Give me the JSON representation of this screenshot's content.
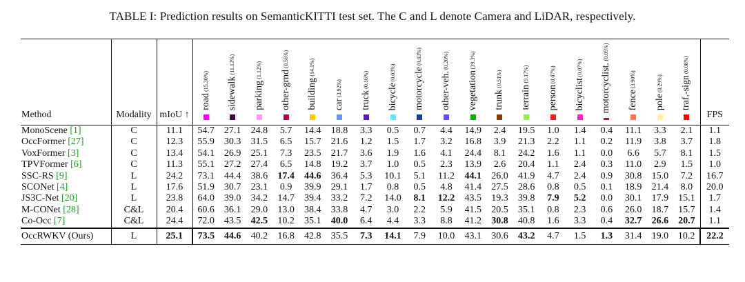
{
  "caption": "TABLE I: Prediction results on SemanticKITTI test set. The C and L denote Camera and LiDAR, respectively.",
  "headers": {
    "method": "Method",
    "modality": "Modality",
    "miou": "mIoU ↑",
    "fps": "FPS"
  },
  "classes": [
    {
      "name": "road",
      "pct": "(15.30%)",
      "color": "#ff00ff"
    },
    {
      "name": "sidewalk",
      "pct": "(11.13%)",
      "color": "#4b004b"
    },
    {
      "name": "parking",
      "pct": "(1.12%)",
      "color": "#ff96ff"
    },
    {
      "name": "other-grnd",
      "pct": "(0.56%)",
      "color": "#af0050"
    },
    {
      "name": "building",
      "pct": "(14.1%)",
      "color": "#ffc800"
    },
    {
      "name": "car",
      "pct": "(3.92%)",
      "color": "#6496f5"
    },
    {
      "name": "truck",
      "pct": "(0.16%)",
      "color": "#501eb4"
    },
    {
      "name": "bicycle",
      "pct": "(0.03%)",
      "color": "#64e6f5"
    },
    {
      "name": "motorcycle",
      "pct": "(0.03%)",
      "color": "#1e3c96"
    },
    {
      "name": "other-veh.",
      "pct": "(0.20%)",
      "color": "#6450fa"
    },
    {
      "name": "vegetation",
      "pct": "(39.3%)",
      "color": "#00af00"
    },
    {
      "name": "trunk",
      "pct": "(0.51%)",
      "color": "#873c00"
    },
    {
      "name": "terrain",
      "pct": "(9.17%)",
      "color": "#96f050"
    },
    {
      "name": "person",
      "pct": "(0.07%)",
      "color": "#ff1e1e"
    },
    {
      "name": "bicyclist",
      "pct": "(0.07%)",
      "color": "#ff28c8"
    },
    {
      "name": "motorcyclist.",
      "pct": "(0.05%)",
      "color": "#961e5a"
    },
    {
      "name": "fence",
      "pct": "(3.90%)",
      "color": "#ff7850"
    },
    {
      "name": "pole",
      "pct": "(0.29%)",
      "color": "#fff096"
    },
    {
      "name": "traf.-sign",
      "pct": "(0.08%)",
      "color": "#ff0000"
    }
  ],
  "rows": [
    {
      "method": "MonoScene",
      "ref": "[1]",
      "modality": "C",
      "miou": "11.1",
      "vals": [
        "54.7",
        "27.1",
        "24.8",
        "5.7",
        "14.4",
        "18.8",
        "3.3",
        "0.5",
        "0.7",
        "4.4",
        "14.9",
        "2.4",
        "19.5",
        "1.0",
        "1.4",
        "0.4",
        "11.1",
        "3.3",
        "2.1"
      ],
      "fps": "1.1"
    },
    {
      "method": "OccFormer",
      "ref": "[27]",
      "modality": "C",
      "miou": "12.3",
      "vals": [
        "55.9",
        "30.3",
        "31.5",
        "6.5",
        "15.7",
        "21.6",
        "1.2",
        "1.5",
        "1.7",
        "3.2",
        "16.8",
        "3.9",
        "21.3",
        "2.2",
        "1.1",
        "0.2",
        "11.9",
        "3.8",
        "3.7"
      ],
      "fps": "1.8"
    },
    {
      "method": "VoxFormer",
      "ref": "[3]",
      "modality": "C",
      "miou": "13.4",
      "vals": [
        "54.1",
        "26.9",
        "25.1",
        "7.3",
        "23.5",
        "21.7",
        "3.6",
        "1.9",
        "1.6",
        "4.1",
        "24.4",
        "8.1",
        "24.2",
        "1.6",
        "1.1",
        "0.0",
        "6.6",
        "5.7",
        "8.1"
      ],
      "fps": "1.5"
    },
    {
      "method": "TPVFormer",
      "ref": "[6]",
      "modality": "C",
      "miou": "11.3",
      "vals": [
        "55.1",
        "27.2",
        "27.4",
        "6.5",
        "14.8",
        "19.2",
        "3.7",
        "1.0",
        "0.5",
        "2.3",
        "13.9",
        "2.6",
        "20.4",
        "1.1",
        "2.4",
        "0.3",
        "11.0",
        "2.9",
        "1.5"
      ],
      "fps": "1.0"
    },
    {
      "method": "SSC-RS",
      "ref": "[9]",
      "modality": "L",
      "miou": "24.2",
      "vals": [
        "73.1",
        "44.4",
        "38.6",
        "17.4",
        "44.6",
        "36.4",
        "5.3",
        "10.1",
        "5.1",
        "11.2",
        "44.1",
        "26.0",
        "41.9",
        "4.7",
        "2.4",
        "0.9",
        "30.8",
        "15.0",
        "7.2"
      ],
      "fps": "16.7"
    },
    {
      "method": "SCONet",
      "ref": "[4]",
      "modality": "L",
      "miou": "17.6",
      "vals": [
        "51.9",
        "30.7",
        "23.1",
        "0.9",
        "39.9",
        "29.1",
        "1.7",
        "0.8",
        "0.5",
        "4.8",
        "41.4",
        "27.5",
        "28.6",
        "0.8",
        "0.5",
        "0.1",
        "18.9",
        "21.4",
        "8.0"
      ],
      "fps": "20.0"
    },
    {
      "method": "JS3C-Net",
      "ref": "[20]",
      "modality": "L",
      "miou": "23.8",
      "vals": [
        "64.0",
        "39.0",
        "34.2",
        "14.7",
        "39.4",
        "33.2",
        "7.2",
        "14.0",
        "8.1",
        "12.2",
        "43.5",
        "19.3",
        "39.8",
        "7.9",
        "5.2",
        "0.0",
        "30.1",
        "17.9",
        "15.1"
      ],
      "fps": "1.7"
    },
    {
      "method": "M-CONet",
      "ref": "[28]",
      "modality": "C&L",
      "miou": "20.4",
      "vals": [
        "60.6",
        "36.1",
        "29.0",
        "13.0",
        "38.4",
        "33.8",
        "4.7",
        "3.0",
        "2.2",
        "5.9",
        "41.5",
        "20.5",
        "35.1",
        "0.8",
        "2.3",
        "0.6",
        "26.0",
        "18.7",
        "15.7"
      ],
      "fps": "1.4"
    },
    {
      "method": "Co-Occ",
      "ref": "[7]",
      "modality": "C&L",
      "miou": "24.4",
      "vals": [
        "72.0",
        "43.5",
        "42.5",
        "10.2",
        "35.1",
        "40.0",
        "6.4",
        "4.4",
        "3.3",
        "8.8",
        "41.2",
        "30.8",
        "40.8",
        "1.6",
        "3.3",
        "0.4",
        "32.7",
        "26.6",
        "20.7"
      ],
      "fps": "1.1"
    }
  ],
  "bold": {
    "4": [
      3,
      4,
      10
    ],
    "6": [
      8,
      9,
      13,
      14
    ],
    "8": [
      2,
      5,
      11,
      16,
      17,
      18
    ]
  },
  "ours": {
    "method": "OccRWKV (Ours)",
    "modality": "L",
    "miou": "25.1",
    "vals": [
      "73.5",
      "44.6",
      "40.2",
      "16.8",
      "42.8",
      "35.5",
      "7.3",
      "14.1",
      "7.9",
      "10.0",
      "43.1",
      "30.6",
      "43.2",
      "4.7",
      "1.5",
      "1.3",
      "31.4",
      "19.0",
      "10.2"
    ],
    "fps": "22.2",
    "bold": [
      0,
      1,
      6,
      7,
      12,
      15
    ],
    "bold_miou": true,
    "bold_fps": true
  }
}
